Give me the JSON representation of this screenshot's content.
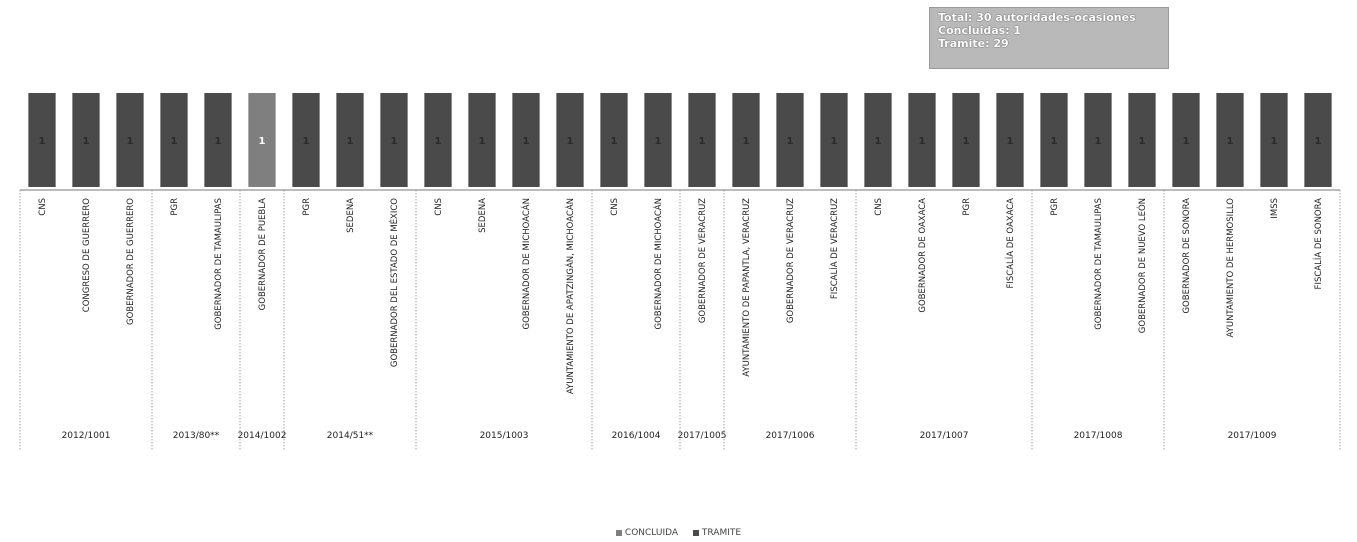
{
  "summary": {
    "total": "Total:  30 autoridades-ocasiones",
    "concluidas": "Concluidas: 1",
    "tramite": "Tramite: 29"
  },
  "colors": {
    "concluida": "#7f7f7f",
    "tramite": "#4a4a4a"
  },
  "chart_data": {
    "type": "bar",
    "stacked": true,
    "title": "",
    "xlabel": "",
    "ylabel": "",
    "groups": [
      {
        "label": "2012/1001",
        "categories": [
          "CNS",
          "CONGRESO DE GUERRERO",
          "GOBERNADOR DE GUERRERO"
        ]
      },
      {
        "label": "2013/80**",
        "categories": [
          "PGR",
          "GOBERNADOR DE TAMAULIPAS"
        ]
      },
      {
        "label": "2014/1002",
        "categories": [
          "GOBERNADOR DE PUEBLA"
        ]
      },
      {
        "label": "2014/51**",
        "categories": [
          "PGR",
          "SEDENA",
          "GOBERNADOR DEL ESTADO DE MÉXICO"
        ]
      },
      {
        "label": "2015/1003",
        "categories": [
          "CNS",
          "SEDENA",
          "GOBERNADOR DE MICHOACÁN",
          "AYUNTAMIENTO DE APATZINGÁN, MICHOACÁN"
        ]
      },
      {
        "label": "2016/1004",
        "categories": [
          "CNS",
          "GOBERNADOR DE MICHOACÁN"
        ]
      },
      {
        "label": "2017/1005",
        "categories": [
          "GOBERNADOR DE VERACRUZ"
        ]
      },
      {
        "label": "2017/1006",
        "categories": [
          "AYUNTAMIENTO DE PAPANTLA, VERACRUZ",
          "GOBERNADOR DE VERACRUZ",
          "FISCALÍA DE VERACRUZ"
        ]
      },
      {
        "label": "2017/1007",
        "categories": [
          "CNS",
          "GOBERNADOR DE OAXACA",
          "PGR",
          "FISCALÍA DE OAXACA"
        ]
      },
      {
        "label": "2017/1008",
        "categories": [
          "PGR",
          "GOBERNADOR DE TAMAULIPAS",
          "GOBERNADOR DE NUEVO LEÓN"
        ]
      },
      {
        "label": "2017/1009",
        "categories": [
          "GOBERNADOR DE SONORA",
          "AYUNTAMIENTO DE HERMOSILLO",
          "IMSS",
          "FISCALÍA DE SONORA"
        ]
      }
    ],
    "series": [
      {
        "name": "CONCLUIDA",
        "values": [
          0,
          0,
          0,
          0,
          0,
          1,
          0,
          0,
          0,
          0,
          0,
          0,
          0,
          0,
          0,
          0,
          0,
          0,
          0,
          0,
          0,
          0,
          0,
          0,
          0,
          0,
          0,
          0,
          0,
          0
        ]
      },
      {
        "name": "TRAMITE",
        "values": [
          1,
          1,
          1,
          1,
          1,
          0,
          1,
          1,
          1,
          1,
          1,
          1,
          1,
          1,
          1,
          1,
          1,
          1,
          1,
          1,
          1,
          1,
          1,
          1,
          1,
          1,
          1,
          1,
          1,
          1
        ]
      }
    ],
    "ylim": [
      0,
      1
    ],
    "grid": false,
    "legend_position": "bottom"
  }
}
